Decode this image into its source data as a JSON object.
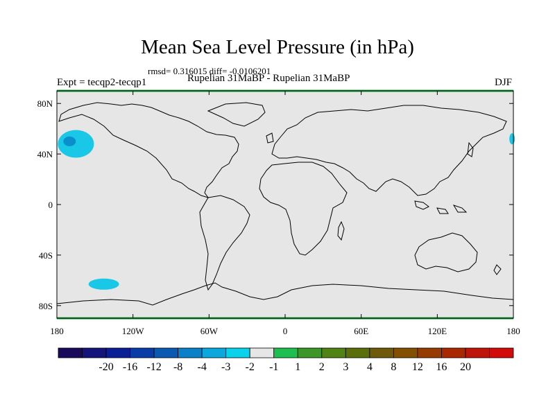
{
  "header": {
    "title": "Mean Sea Level Pressure (in hPa)",
    "stats": "rmsd= 0.316015 diff= -0.0106201",
    "experiment": "Expt = tecqp2-tecqp1",
    "subtitle": "Rupelian  31MaBP - Rupelian  31MaBP",
    "season": "DJF"
  },
  "map": {
    "projection": "cylindrical equidistant",
    "lon_range": [
      -180,
      180
    ],
    "lat_range": [
      -90,
      90
    ],
    "background_color": "#e6e6e6",
    "frame_color": "#20b040",
    "lat_ticks": [
      {
        "lat": 80,
        "label": "80N"
      },
      {
        "lat": 40,
        "label": "40N"
      },
      {
        "lat": 0,
        "label": "0"
      },
      {
        "lat": -40,
        "label": "40S"
      },
      {
        "lat": -80,
        "label": "80S"
      }
    ],
    "lon_ticks": [
      {
        "lon": -180,
        "label": "180"
      },
      {
        "lon": -120,
        "label": "120W"
      },
      {
        "lon": -60,
        "label": "60W"
      },
      {
        "lon": 0,
        "label": "0"
      },
      {
        "lon": 60,
        "label": "60E"
      },
      {
        "lon": 120,
        "label": "120E"
      },
      {
        "lon": 180,
        "label": "180"
      }
    ],
    "anomalies": [
      {
        "name": "north-pacific-low",
        "lon": -165,
        "lat": 48,
        "level": -3,
        "color": "#19c8e6"
      },
      {
        "name": "north-pacific-core",
        "lon": -170,
        "lat": 50,
        "level": -4,
        "color": "#0a8fcc"
      },
      {
        "name": "southern-ocean-low",
        "lon": -143,
        "lat": -63,
        "level": -2,
        "color": "#19c8e6"
      },
      {
        "name": "northeast-pacific-edge",
        "lon": 179,
        "lat": 52,
        "level": -2,
        "color": "#19c8e6"
      }
    ]
  },
  "colorbar": {
    "colors": [
      "#1a0a5c",
      "#14147a",
      "#0a1e96",
      "#0a3ca8",
      "#0a5ab4",
      "#0a80c8",
      "#0aa8dc",
      "#0ad2eb",
      "#e6e6e6",
      "#1fbe50",
      "#3c9628",
      "#508214",
      "#5a6e0a",
      "#6e5a0a",
      "#825000",
      "#963c00",
      "#aa2800",
      "#be140a",
      "#d20a0a"
    ],
    "labels": [
      "-20",
      "-16",
      "-12",
      "-8",
      "-4",
      "-3",
      "-2",
      "-1",
      "1",
      "2",
      "3",
      "4",
      "8",
      "12",
      "16",
      "20"
    ]
  }
}
